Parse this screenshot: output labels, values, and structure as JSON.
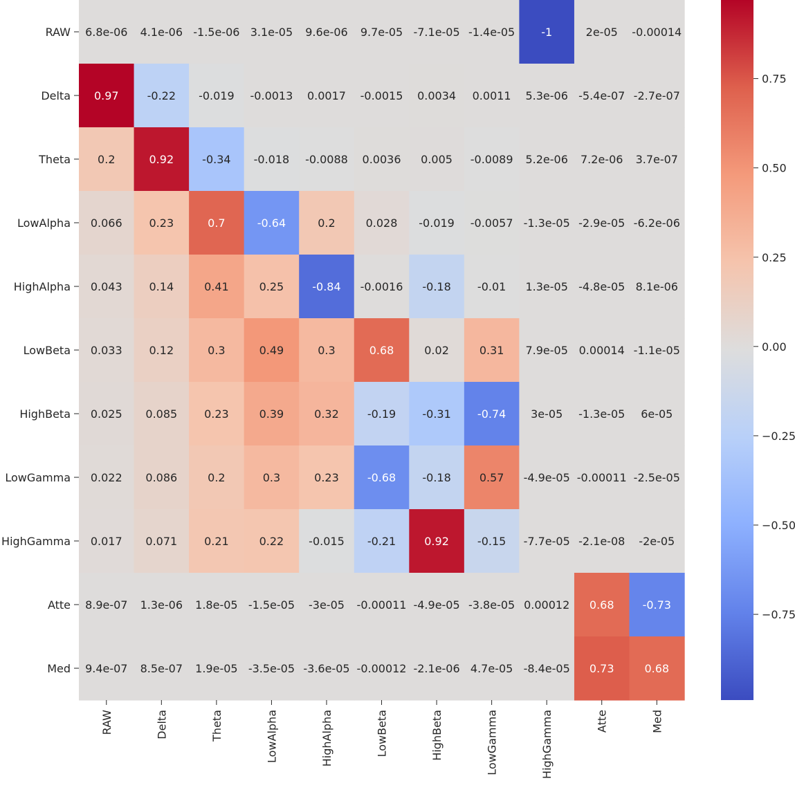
{
  "chart_data": {
    "type": "heatmap",
    "colormap": "coolwarm",
    "vmin": -0.99,
    "vmax": 0.97,
    "rows": [
      "RAW",
      "Delta",
      "Theta",
      "LowAlpha",
      "HighAlpha",
      "LowBeta",
      "HighBeta",
      "LowGamma",
      "HighGamma",
      "Atte",
      "Med"
    ],
    "columns": [
      "RAW",
      "Delta",
      "Theta",
      "LowAlpha",
      "HighAlpha",
      "LowBeta",
      "HighBeta",
      "LowGamma",
      "HighGamma",
      "Atte",
      "Med"
    ],
    "labels": [
      [
        "6.8e-06",
        "4.1e-06",
        "-1.5e-06",
        "3.1e-05",
        "9.6e-06",
        "9.7e-05",
        "-7.1e-05",
        "-1.4e-05",
        "-1",
        "2e-05",
        "-0.00014"
      ],
      [
        "0.97",
        "-0.22",
        "-0.019",
        "-0.0013",
        "0.0017",
        "-0.0015",
        "0.0034",
        "0.0011",
        "5.3e-06",
        "-5.4e-07",
        "-2.7e-07"
      ],
      [
        "0.2",
        "0.92",
        "-0.34",
        "-0.018",
        "-0.0088",
        "0.0036",
        "0.005",
        "-0.0089",
        "5.2e-06",
        "7.2e-06",
        "3.7e-07"
      ],
      [
        "0.066",
        "0.23",
        "0.7",
        "-0.64",
        "0.2",
        "0.028",
        "-0.019",
        "-0.0057",
        "-1.3e-05",
        "-2.9e-05",
        "-6.2e-06"
      ],
      [
        "0.043",
        "0.14",
        "0.41",
        "0.25",
        "-0.84",
        "-0.0016",
        "-0.18",
        "-0.01",
        "1.3e-05",
        "-4.8e-05",
        "8.1e-06"
      ],
      [
        "0.033",
        "0.12",
        "0.3",
        "0.49",
        "0.3",
        "0.68",
        "0.02",
        "0.31",
        "7.9e-05",
        "0.00014",
        "-1.1e-05"
      ],
      [
        "0.025",
        "0.085",
        "0.23",
        "0.39",
        "0.32",
        "-0.19",
        "-0.31",
        "-0.74",
        "3e-05",
        "-1.3e-05",
        "6e-05"
      ],
      [
        "0.022",
        "0.086",
        "0.2",
        "0.3",
        "0.23",
        "-0.68",
        "-0.18",
        "0.57",
        "-4.9e-05",
        "-0.00011",
        "-2.5e-05"
      ],
      [
        "0.017",
        "0.071",
        "0.21",
        "0.22",
        "-0.015",
        "-0.21",
        "0.92",
        "-0.15",
        "-7.7e-05",
        "-2.1e-08",
        "-2e-05"
      ],
      [
        "8.9e-07",
        "1.3e-06",
        "1.8e-05",
        "-1.5e-05",
        "-3e-05",
        "-0.00011",
        "-4.9e-05",
        "-3.8e-05",
        "0.00012",
        "0.68",
        "-0.73"
      ],
      [
        "9.4e-07",
        "8.5e-07",
        "1.9e-05",
        "-3.5e-05",
        "-3.6e-05",
        "-0.00012",
        "-2.1e-06",
        "4.7e-05",
        "-8.4e-05",
        "0.73",
        "0.68"
      ]
    ],
    "colorbar_ticks": [
      "0.75",
      "0.50",
      "0.25",
      "0.00",
      "−0.25",
      "−0.50",
      "−0.75"
    ],
    "title": "",
    "xlabel": "",
    "ylabel": ""
  }
}
